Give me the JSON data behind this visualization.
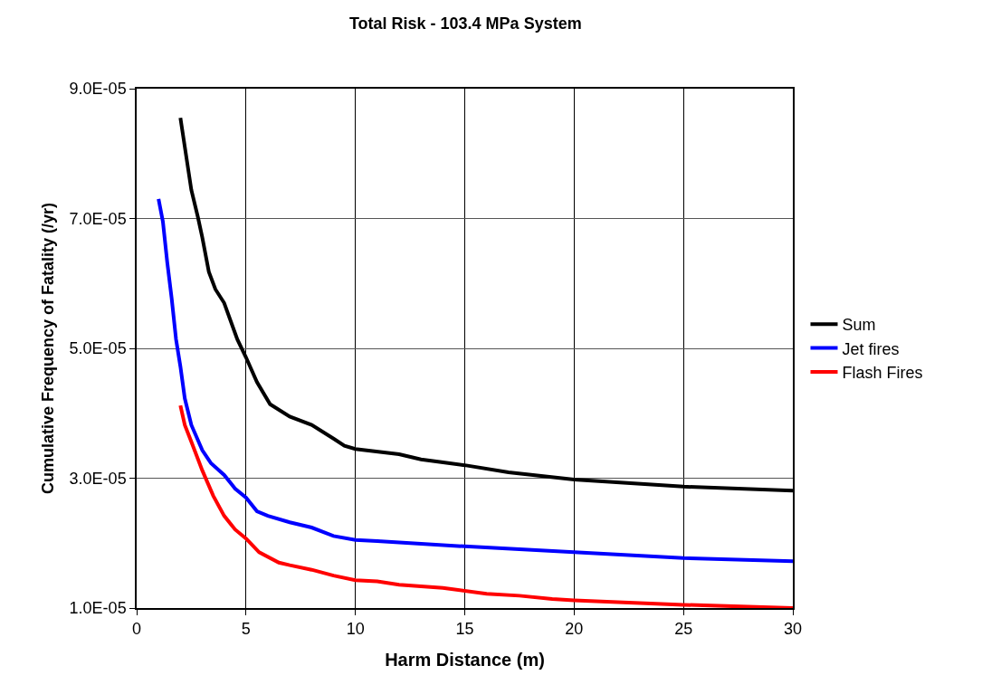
{
  "chart_data": {
    "type": "line",
    "title": "Total Risk - 103.4 MPa System",
    "xlabel": "Harm Distance (m)",
    "ylabel": "Cumulative Frequency of Fatality (/yr)",
    "xlim": [
      0,
      30
    ],
    "xticks": [
      0,
      5,
      10,
      15,
      20,
      25,
      30
    ],
    "ylim": [
      1e-05,
      9e-05
    ],
    "yticks": [
      {
        "value": 1e-05,
        "label": "1.0E-05"
      },
      {
        "value": 3e-05,
        "label": "3.0E-05"
      },
      {
        "value": 5e-05,
        "label": "5.0E-05"
      },
      {
        "value": 7e-05,
        "label": "7.0E-05"
      },
      {
        "value": 9e-05,
        "label": "9.0E-05"
      }
    ],
    "grid": true,
    "legend": "right",
    "marker": "none",
    "line_style": "solid",
    "series": [
      {
        "name": "Sum",
        "color": "#000000",
        "x": [
          2,
          2.5,
          2.8,
          3,
          3.3,
          3.6,
          4,
          4.6,
          5,
          5.5,
          6.1,
          7,
          8,
          9,
          9.5,
          10,
          12,
          13,
          15,
          17,
          20,
          25,
          30
        ],
        "values": [
          8.55e-05,
          7.44e-05,
          7.02e-05,
          6.71e-05,
          6.18e-05,
          5.91e-05,
          5.7e-05,
          5.14e-05,
          4.86e-05,
          4.48e-05,
          4.14e-05,
          3.95e-05,
          3.82e-05,
          3.61e-05,
          3.5e-05,
          3.45e-05,
          3.37e-05,
          3.29e-05,
          3.2e-05,
          3.09e-05,
          2.98e-05,
          2.87e-05,
          2.81e-05
        ]
      },
      {
        "name": "Jet fires",
        "color": "#0000ff",
        "x": [
          1,
          1.2,
          1.4,
          1.6,
          1.8,
          2,
          2.2,
          2.5,
          3,
          3.4,
          4,
          4.5,
          5,
          5.5,
          6,
          7,
          8,
          9,
          10,
          11,
          15,
          20,
          25,
          30
        ],
        "values": [
          7.3e-05,
          6.95e-05,
          6.32e-05,
          5.77e-05,
          5.14e-05,
          4.72e-05,
          4.23e-05,
          3.82e-05,
          3.43e-05,
          3.23e-05,
          3.05e-05,
          2.84e-05,
          2.7e-05,
          2.49e-05,
          2.42e-05,
          2.32e-05,
          2.24e-05,
          2.11e-05,
          2.05e-05,
          2.03e-05,
          1.95e-05,
          1.86e-05,
          1.77e-05,
          1.72e-05
        ]
      },
      {
        "name": "Flash Fires",
        "color": "#ff0000",
        "x": [
          2,
          2.2,
          2.5,
          3,
          3.5,
          4,
          4.5,
          5,
          5.6,
          6.5,
          7,
          8,
          9,
          10,
          11,
          12,
          14,
          16,
          17.5,
          19,
          20,
          25,
          30
        ],
        "values": [
          4.12e-05,
          3.82e-05,
          3.56e-05,
          3.12e-05,
          2.73e-05,
          2.42e-05,
          2.21e-05,
          2.07e-05,
          1.86e-05,
          1.7e-05,
          1.66e-05,
          1.59e-05,
          1.5e-05,
          1.43e-05,
          1.41e-05,
          1.36e-05,
          1.31e-05,
          1.22e-05,
          1.19e-05,
          1.14e-05,
          1.12e-05,
          1.05e-05,
          1e-05
        ]
      }
    ]
  }
}
